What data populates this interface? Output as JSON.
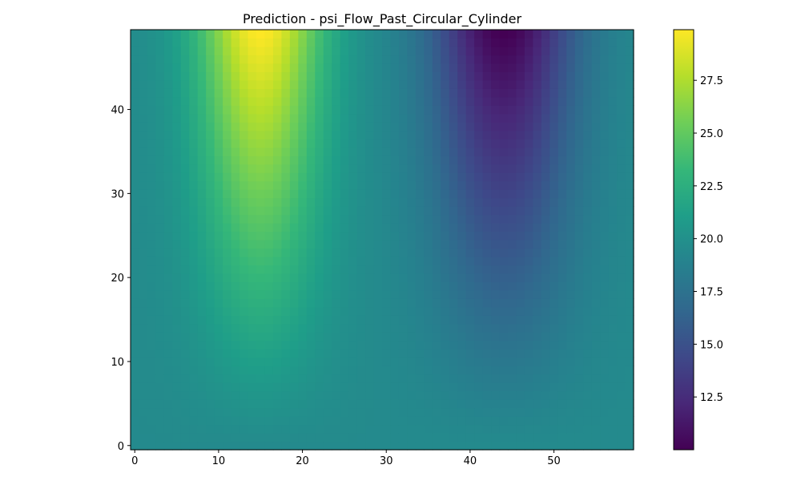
{
  "chart_data": {
    "type": "heatmap",
    "title": "Prediction - psi_Flow_Past_Circular_Cylinder",
    "xlabel": "",
    "ylabel": "",
    "grid": false,
    "colormap": "viridis",
    "x_range": [
      -0.5,
      59.5
    ],
    "y_range": [
      -0.5,
      49.5
    ],
    "x_ticks": [
      0,
      10,
      20,
      30,
      40,
      50
    ],
    "y_ticks": [
      0,
      10,
      20,
      30,
      40
    ],
    "colorbar": {
      "min": 10.0,
      "max": 29.9,
      "ticks": [
        12.5,
        15.0,
        17.5,
        20.0,
        22.5,
        25.0,
        27.5
      ],
      "tick_labels": [
        "12.5",
        "15.0",
        "17.5",
        "20.0",
        "22.5",
        "25.0",
        "27.5"
      ]
    },
    "grid_shape": {
      "columns": 60,
      "rows": 50
    },
    "field_description": "psi field: near 19.5 along the bottom rows, rising to ~29.9 at top around x=15, falling to ~10.0 at top around x=44",
    "field_model": {
      "base": 19.5,
      "peak": {
        "amplitude": 10.4,
        "x_center": 15,
        "x_width": 7.5
      },
      "trough": {
        "amplitude": -9.5,
        "x_center": 44,
        "x_width": 8.5
      },
      "vertical_exponent": 1.15
    }
  },
  "colors": {
    "viridis_stops": [
      "#440154",
      "#482878",
      "#3e4989",
      "#31688e",
      "#26828e",
      "#1f9e89",
      "#35b779",
      "#6ece58",
      "#b5de2b",
      "#fde725"
    ],
    "axis": "#000000",
    "background": "#ffffff"
  }
}
